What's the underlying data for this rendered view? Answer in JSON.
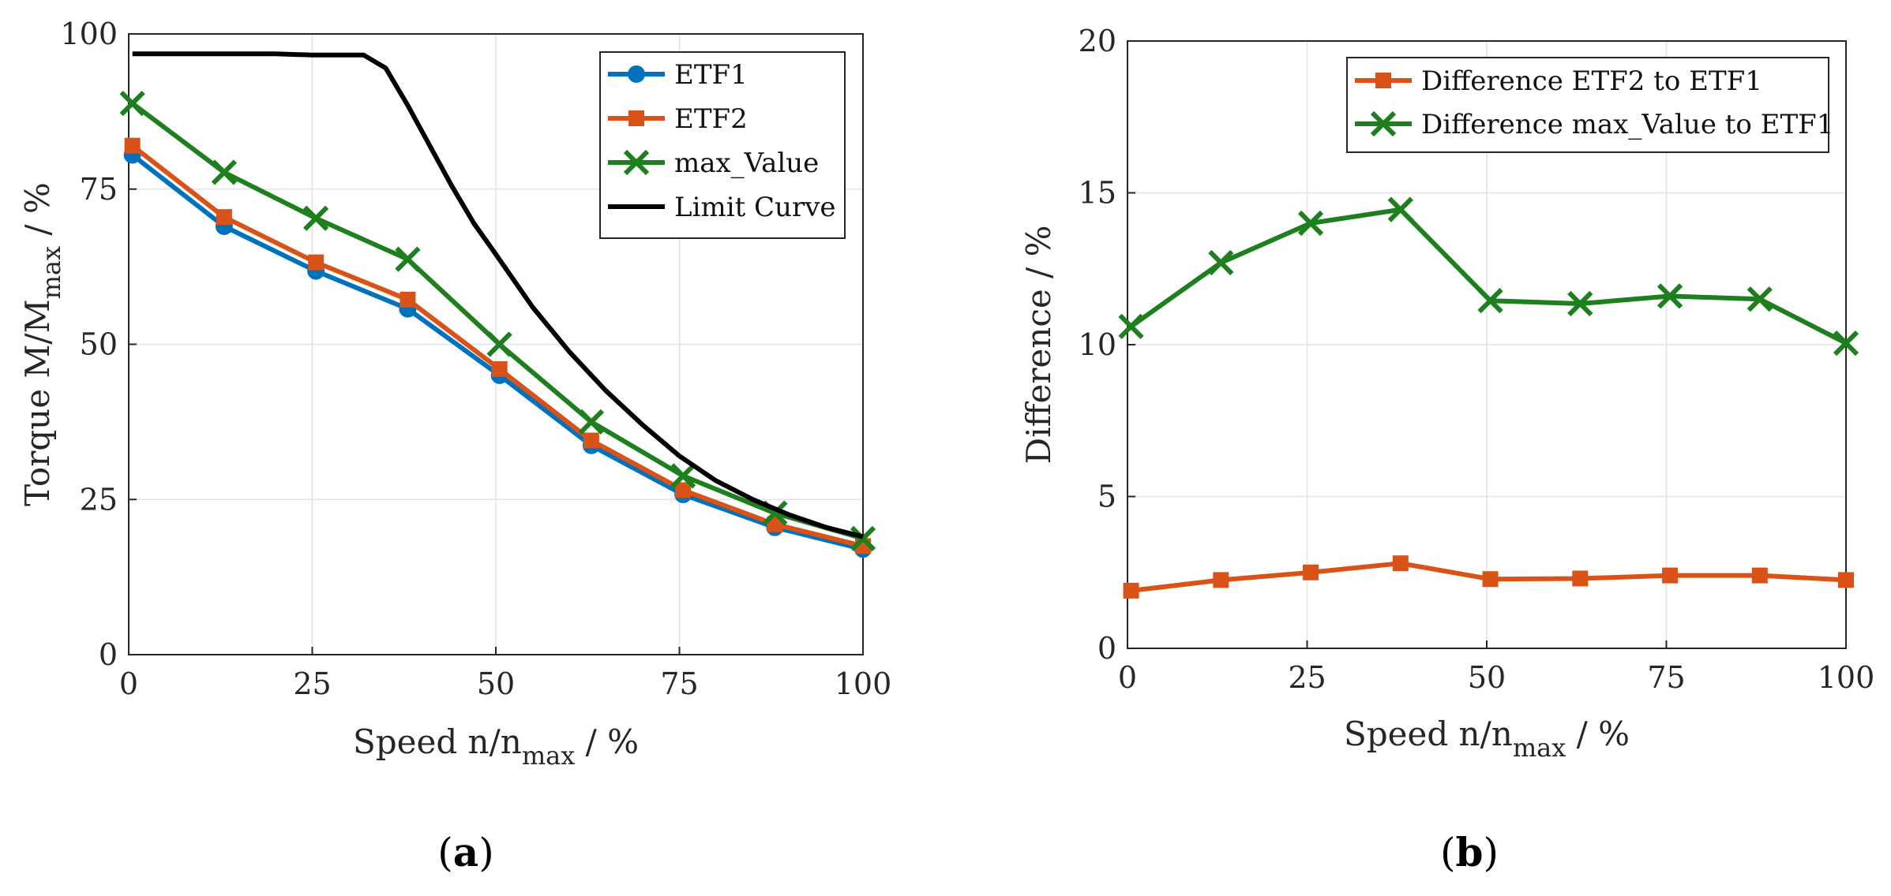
{
  "chart_data": [
    {
      "type": "line",
      "panel": "a",
      "caption_letter": "a",
      "xlabel": {
        "prefix": "Speed n/n",
        "sub": "max",
        "suffix": " / %"
      },
      "ylabel": {
        "prefix": "Torque M/M",
        "sub": "max",
        "suffix": "  / %"
      },
      "xlim": [
        0,
        100
      ],
      "ylim": [
        0,
        100
      ],
      "xticks": [
        0,
        25,
        50,
        75,
        100
      ],
      "yticks": [
        0,
        25,
        50,
        75,
        100
      ],
      "grid": true,
      "legend_position": "top-right",
      "series": [
        {
          "name": "ETF1",
          "color": "#0072BD",
          "marker": "circle",
          "x": [
            0.5,
            13,
            25.5,
            38,
            50.5,
            63,
            75.5,
            88,
            100
          ],
          "y": [
            80.5,
            69,
            61.8,
            55.7,
            45,
            33.7,
            25.8,
            20.5,
            17
          ]
        },
        {
          "name": "ETF2",
          "color": "#D95319",
          "marker": "square",
          "x": [
            0.5,
            13,
            25.5,
            38,
            50.5,
            63,
            75.5,
            88,
            100
          ],
          "y": [
            82,
            70.5,
            63.2,
            57.2,
            46,
            34.5,
            26.5,
            21,
            17.5
          ]
        },
        {
          "name": "max_Value",
          "color": "#1E7F1E",
          "marker": "x",
          "x": [
            0.5,
            13,
            25.5,
            38,
            50.5,
            63,
            75.5,
            88,
            100
          ],
          "y": [
            88.8,
            77.7,
            70.3,
            63.7,
            50,
            37.5,
            28.8,
            22.8,
            18.7
          ]
        },
        {
          "name": "Limit Curve",
          "color": "#000000",
          "marker": "none",
          "x": [
            0.5,
            10,
            20,
            25,
            32,
            35,
            38,
            41,
            44,
            47,
            50,
            55,
            60,
            65,
            70,
            75,
            80,
            85,
            90,
            95,
            100
          ],
          "y": [
            96.8,
            96.8,
            96.8,
            96.6,
            96.6,
            94.5,
            88.5,
            82,
            75.5,
            69.5,
            64.5,
            56,
            48.8,
            42.5,
            37,
            32,
            28,
            25,
            22.5,
            20.5,
            19
          ]
        }
      ]
    },
    {
      "type": "line",
      "panel": "b",
      "caption_letter": "b",
      "xlabel": {
        "prefix": "Speed n/n",
        "sub": "max",
        "suffix": " / %"
      },
      "ylabel": {
        "prefix": "Difference / %",
        "sub": "",
        "suffix": ""
      },
      "xlim": [
        0,
        100
      ],
      "ylim": [
        0,
        20
      ],
      "xticks": [
        0,
        25,
        50,
        75,
        100
      ],
      "yticks": [
        0,
        5,
        10,
        15,
        20
      ],
      "grid": true,
      "legend_position": "top-right",
      "series": [
        {
          "name": "Difference ETF2 to ETF1",
          "color": "#D95319",
          "marker": "square",
          "x": [
            0.5,
            13,
            25.5,
            38,
            50.5,
            63,
            75.5,
            88,
            100
          ],
          "y": [
            1.9,
            2.25,
            2.5,
            2.8,
            2.28,
            2.3,
            2.4,
            2.4,
            2.25
          ]
        },
        {
          "name": "Difference max_Value to ETF1",
          "color": "#1E7F1E",
          "marker": "x",
          "x": [
            0.5,
            13,
            25.5,
            38,
            50.5,
            63,
            75.5,
            88,
            100
          ],
          "y": [
            10.6,
            12.7,
            14,
            14.45,
            11.45,
            11.35,
            11.6,
            11.5,
            10.05
          ]
        }
      ]
    }
  ]
}
